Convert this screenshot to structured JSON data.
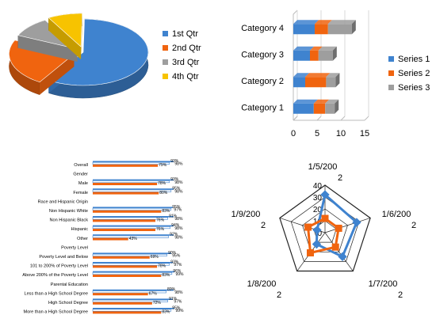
{
  "colors": {
    "blue": "#3F83CF",
    "orange": "#F0640F",
    "gray": "#9E9E9E",
    "yellow": "#F7C300",
    "axis": "#888888"
  },
  "chart_data": [
    {
      "type": "pie",
      "categories": [
        "1st Qtr",
        "2nd Qtr",
        "3rd Qtr",
        "4th Qtr"
      ],
      "values": [
        8.2,
        3.2,
        1.4,
        1.2
      ],
      "legend": "right",
      "title": ""
    },
    {
      "type": "bar",
      "orientation": "horizontal",
      "stacked": true,
      "categories": [
        "Category 1",
        "Category 2",
        "Category 3",
        "Category 4"
      ],
      "series": [
        {
          "name": "Series 1",
          "values": [
            4.3,
            2.5,
            3.5,
            4.5
          ]
        },
        {
          "name": "Series 2",
          "values": [
            2.4,
            4.4,
            1.8,
            2.8
          ]
        },
        {
          "name": "Series 3",
          "values": [
            2,
            2,
            3,
            5
          ]
        }
      ],
      "xticks": [
        "0",
        "5",
        "10",
        "15"
      ],
      "xlim": [
        0,
        15
      ],
      "legend": "right",
      "title": ""
    },
    {
      "type": "bar",
      "orientation": "horizontal",
      "rows": [
        {
          "label": "Overall",
          "a": 79,
          "b": 93,
          "c": 98,
          "la": "79%",
          "lb": "93%",
          "lc": "98%"
        },
        {
          "label": "Gender"
        },
        {
          "label": "Male",
          "a": 78,
          "b": 93,
          "c": 98,
          "la": "78%",
          "lb": "93%",
          "lc": "98%"
        },
        {
          "label": "Female",
          "a": 80,
          "b": 95,
          "c": 98,
          "la": "80%",
          "lb": "95%",
          "lc": "98%"
        },
        {
          "label": "Race and Hispanic Origin"
        },
        {
          "label": "Non Hispanic White",
          "a": 83,
          "b": 95,
          "c": 97,
          "la": "83%",
          "lb": "95%",
          "lc": "97%"
        },
        {
          "label": "Non Hispanic Black",
          "a": 76,
          "b": 91,
          "c": 98,
          "la": "76%",
          "lb": "91%",
          "lc": "98%"
        },
        {
          "label": "Hispanic",
          "a": 76,
          "b": 94,
          "c": 98,
          "la": "76%",
          "lb": "94%",
          "lc": "98%"
        },
        {
          "label": "Other",
          "a": 43,
          "b": 92,
          "c": 98,
          "la": "43%",
          "lb": "92%",
          "lc": "98%"
        },
        {
          "label": "Poverty Level"
        },
        {
          "label": "Poverty Level and Below",
          "a": 69,
          "b": 90,
          "c": 95,
          "la": "69%",
          "lb": "90%",
          "lc": "95%"
        },
        {
          "label": "101 to 200% of Poverty Level",
          "a": 78,
          "b": 93,
          "c": 97,
          "la": "78%",
          "lb": "93%",
          "lc": "97%"
        },
        {
          "label": "Above 200% of the Poverty Level",
          "a": 83,
          "b": 96,
          "c": 99,
          "la": "83%",
          "lb": "96%",
          "lc": "99%"
        },
        {
          "label": "Parental Education"
        },
        {
          "label": "Less than a High School Degree",
          "a": 67,
          "b": 89,
          "c": 98,
          "la": "67%",
          "lb": "89%",
          "lc": "98%"
        },
        {
          "label": "High School Degree",
          "a": 72,
          "b": 91,
          "c": 97,
          "la": "72%",
          "lb": "91%",
          "lc": "97%"
        },
        {
          "label": "More than a High School Degree",
          "a": 83,
          "b": 95,
          "c": 99,
          "la": "83%",
          "lb": "95%",
          "lc": "99%"
        }
      ],
      "xlim": [
        0,
        100
      ],
      "title": ""
    },
    {
      "type": "radar",
      "axes": [
        {
          "line1": "1/5/200",
          "line2": "2"
        },
        {
          "line1": "1/6/200",
          "line2": "2"
        },
        {
          "line1": "1/7/200",
          "line2": "2"
        },
        {
          "line1": "1/8/200",
          "line2": "2"
        },
        {
          "line1": "1/9/200",
          "line2": "2"
        }
      ],
      "ticks": [
        "0",
        "10",
        "20",
        "30",
        "40"
      ],
      "rmax": 40,
      "series": [
        {
          "color": "blue",
          "values": [
            32,
            28,
            25,
            12,
            7
          ]
        },
        {
          "color": "orange",
          "values": [
            12,
            12,
            15,
            21,
            15
          ]
        }
      ],
      "title": ""
    }
  ]
}
